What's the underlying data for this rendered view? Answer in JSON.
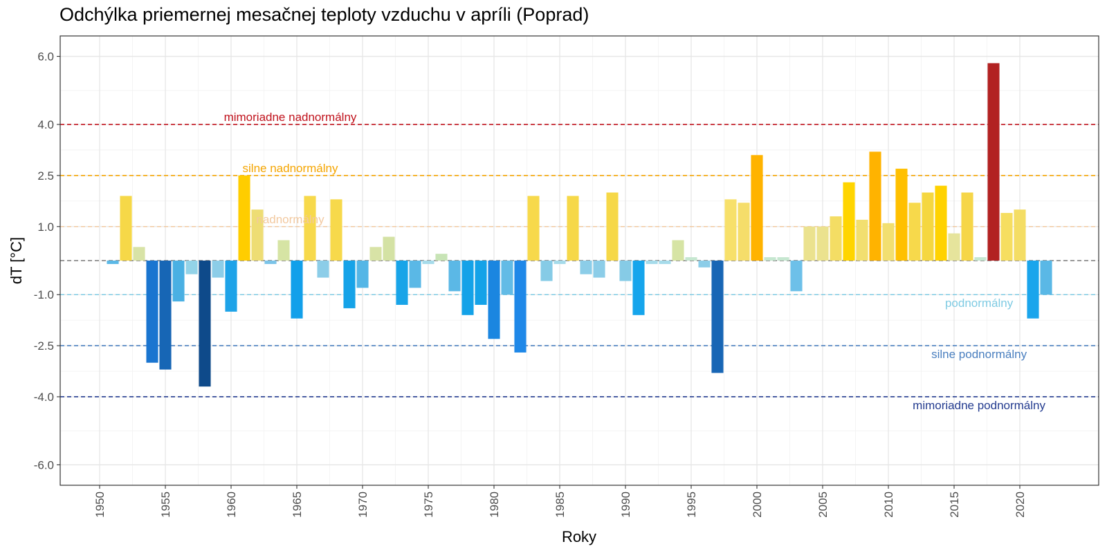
{
  "chart_data": {
    "type": "bar",
    "title": "Odchýlka priemernej mesačnej teploty vzduchu v apríli (Poprad)",
    "xlabel": "Roky",
    "ylabel": "dT [°C]",
    "xlim": [
      1947,
      2026
    ],
    "ylim": [
      -6.6,
      6.6
    ],
    "x_ticks": [
      1950,
      1955,
      1960,
      1965,
      1970,
      1975,
      1980,
      1985,
      1990,
      1995,
      2000,
      2005,
      2010,
      2015,
      2020
    ],
    "y_ticks": [
      {
        "value": 6.0,
        "label": "6.0"
      },
      {
        "value": 4.0,
        "label": "4.0"
      },
      {
        "value": 2.5,
        "label": "2.5"
      },
      {
        "value": 1.0,
        "label": "1.0"
      },
      {
        "value": -1.0,
        "label": "-1.0"
      },
      {
        "value": -2.5,
        "label": "-2.5"
      },
      {
        "value": -4.0,
        "label": "-4.0"
      },
      {
        "value": -6.0,
        "label": "-6.0"
      }
    ],
    "grid": true,
    "series": [
      {
        "x": [
          1951,
          1952,
          1953,
          1954,
          1955,
          1956,
          1957,
          1958,
          1959,
          1960,
          1961,
          1962,
          1963,
          1964,
          1965,
          1966,
          1967,
          1968,
          1969,
          1970,
          1971,
          1972,
          1973,
          1974,
          1975,
          1976,
          1977,
          1978,
          1979,
          1980,
          1981,
          1982,
          1983,
          1984,
          1985,
          1986,
          1987,
          1988,
          1989,
          1990,
          1991,
          1992,
          1993,
          1994,
          1995,
          1996,
          1997,
          1998,
          1999,
          2000,
          2001,
          2002,
          2003,
          2004,
          2005,
          2006,
          2007,
          2008,
          2009,
          2010,
          2011,
          2012,
          2013,
          2014,
          2015,
          2016,
          2017,
          2018,
          2019,
          2020,
          2021,
          2022
        ],
        "values": [
          -0.1,
          1.9,
          0.4,
          -3.0,
          -3.2,
          -1.2,
          -0.4,
          -3.7,
          -0.5,
          -1.5,
          2.5,
          1.5,
          -0.1,
          0.6,
          -1.7,
          1.9,
          -0.5,
          1.8,
          -1.4,
          -0.8,
          0.4,
          0.7,
          -1.3,
          -0.8,
          -0.1,
          0.2,
          -0.9,
          -1.6,
          -1.3,
          -2.3,
          -1.0,
          -2.7,
          1.9,
          -0.6,
          -0.1,
          1.9,
          -0.4,
          -0.5,
          2.0,
          -0.6,
          -1.6,
          -0.1,
          -0.1,
          0.6,
          0.1,
          -0.2,
          -3.3,
          1.8,
          1.7,
          3.1,
          0.1,
          0.1,
          -0.9,
          1.0,
          1.0,
          1.3,
          2.3,
          1.2,
          3.2,
          1.1,
          2.7,
          1.7,
          2.0,
          2.2,
          0.8,
          2.0,
          0.1,
          5.8,
          1.4,
          1.5,
          -1.7,
          -1.0
        ],
        "colors": [
          "#5bb8e6",
          "#f6d848",
          "#d8e3a6",
          "#1a75d0",
          "#1766b5",
          "#4ab0e3",
          "#93d3e8",
          "#0e4a8a",
          "#8ccde8",
          "#1ea3e8",
          "#ffcd00",
          "#eedd74",
          "#7bc4e8",
          "#d6e4a4",
          "#12a0ea",
          "#f7d94b",
          "#8ccde8",
          "#f7d94b",
          "#16a3e8",
          "#54b6e6",
          "#d8e3a6",
          "#d4e2a4",
          "#18a4e8",
          "#5ab8e6",
          "#a6dbea",
          "#c8e4b6",
          "#5bb8e6",
          "#14a2e8",
          "#14a2e8",
          "#1b86e0",
          "#62bbe6",
          "#1f88e8",
          "#f7d94b",
          "#86cbe6",
          "#a6dbea",
          "#f6d848",
          "#8ccde8",
          "#8ccde8",
          "#f6d848",
          "#86cbe6",
          "#16a5ec",
          "#a6dbea",
          "#a6dbea",
          "#d6e4a4",
          "#c6e7d0",
          "#8ccde8",
          "#1866b5",
          "#f7e06a",
          "#f5dd6a",
          "#ffb300",
          "#c6e7d0",
          "#c6e7d0",
          "#6dc0e9",
          "#ebe28e",
          "#ebe28e",
          "#f4dd64",
          "#ffd500",
          "#f2df70",
          "#ffb300",
          "#f2df70",
          "#ffc000",
          "#f7d94b",
          "#f5d740",
          "#ffd200",
          "#e6e49c",
          "#f6d648",
          "#c6e7d0",
          "#b22222",
          "#f6de60",
          "#f4dd64",
          "#1aa5ec",
          "#5ab8e6"
        ]
      }
    ],
    "reference_lines": [
      {
        "value": 4.0,
        "label": "mimoriadne nadnormálny",
        "color": "#c0121c",
        "label_year": 1964.5,
        "label_side": "above"
      },
      {
        "value": 2.5,
        "label": "silne nadnormálny",
        "color": "#f5a500",
        "label_year": 1964.5,
        "label_side": "above"
      },
      {
        "value": 1.0,
        "label": "nadnormálny",
        "color": "#f2c9a0",
        "label_year": 1964.5,
        "label_side": "above"
      },
      {
        "value": -1.0,
        "label": "podnormálny",
        "color": "#7fcbe3",
        "label_year": 2016.9,
        "label_side": "below"
      },
      {
        "value": -2.5,
        "label": "silne podnormálny",
        "color": "#4a7fbf",
        "label_year": 2016.9,
        "label_side": "below"
      },
      {
        "value": -4.0,
        "label": "mimoriadne podnormálny",
        "color": "#233b8f",
        "label_year": 2016.9,
        "label_side": "below"
      },
      {
        "value": 0.0,
        "label": "",
        "color": "#777777"
      }
    ]
  }
}
